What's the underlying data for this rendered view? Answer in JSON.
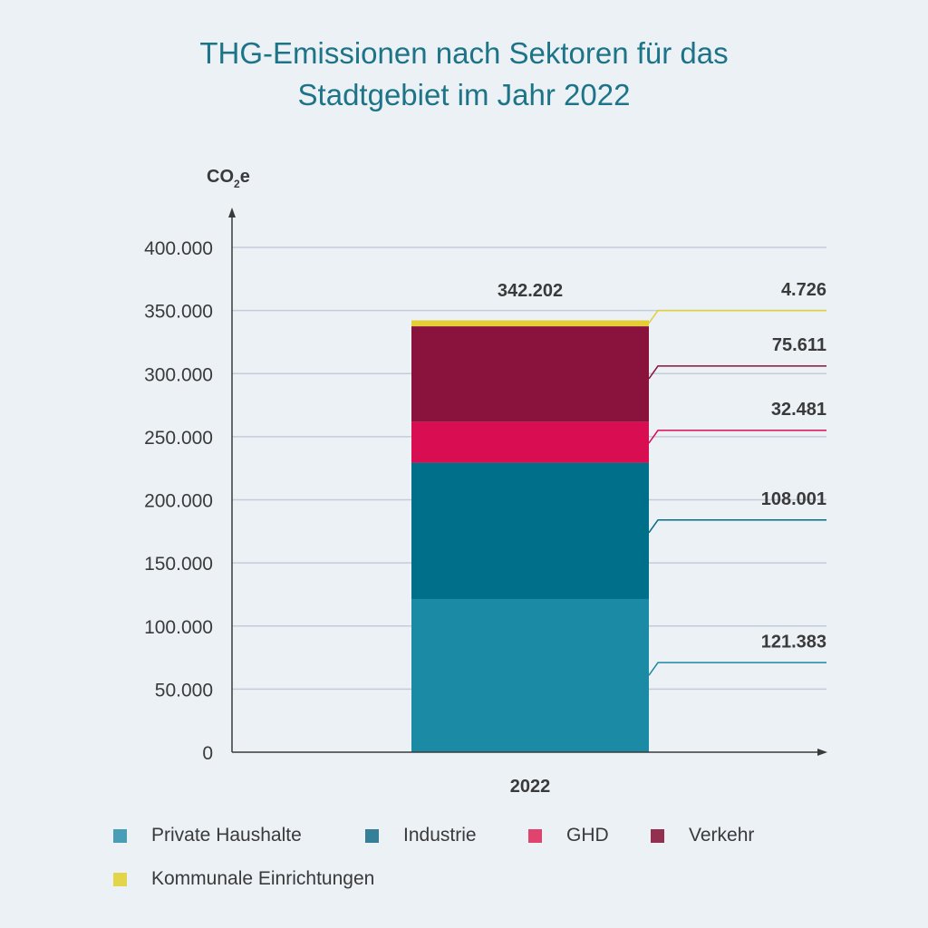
{
  "chart_data": {
    "type": "bar",
    "stacked": true,
    "title_lines": [
      "THG-Emissionen nach Sektoren für das",
      "Stadtgebiet im Jahr 2022"
    ],
    "ylabel": {
      "main": "CO",
      "sub": "2",
      "tail": "e"
    },
    "categories": [
      "2022"
    ],
    "ylim": [
      0,
      400000
    ],
    "yticks": [
      0,
      50000,
      100000,
      150000,
      200000,
      250000,
      300000,
      350000,
      400000
    ],
    "ytick_labels": [
      "0",
      "50.000",
      "100.000",
      "150.000",
      "200.000",
      "250.000",
      "300.000",
      "350.000",
      "400.000"
    ],
    "total": 342202,
    "total_label": "342.202",
    "grid": true,
    "legend_position": "bottom",
    "series": [
      {
        "name": "Private Haushalte",
        "values": [
          121383
        ],
        "value_label": "121.383",
        "color": "#1b8aa5",
        "legend_color": "#4a9db7"
      },
      {
        "name": "Industrie",
        "values": [
          108001
        ],
        "value_label": "108.001",
        "color": "#00708a",
        "legend_color": "#357f98"
      },
      {
        "name": "GHD",
        "values": [
          32481
        ],
        "value_label": "32.481",
        "color": "#d90d52",
        "legend_color": "#e0436d"
      },
      {
        "name": "Verkehr",
        "values": [
          75611
        ],
        "value_label": "75.611",
        "color": "#8a133e",
        "legend_color": "#932f4f"
      },
      {
        "name": "Kommunale Einrichtungen",
        "values": [
          4726
        ],
        "value_label": "4.726",
        "color": "#e3ce36",
        "legend_color": "#e2d54a"
      }
    ]
  }
}
